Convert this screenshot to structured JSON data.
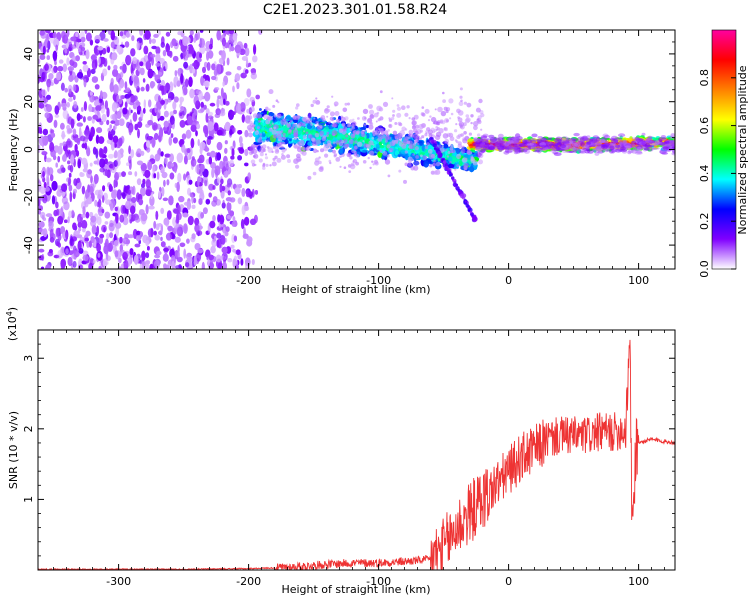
{
  "figure": {
    "title": "C2E1.2023.301.01.58.R24"
  },
  "chart_data": [
    {
      "type": "heatmap",
      "xlabel": "Height of straight line (km)",
      "ylabel": "Frequency (Hz)",
      "xlim": [
        -362,
        128
      ],
      "ylim": [
        -50,
        50
      ],
      "xticks": [
        -300,
        -200,
        -100,
        0,
        100
      ],
      "yticks": [
        -40,
        -20,
        0,
        20,
        40
      ],
      "grid": false,
      "colorbar": {
        "label": "Normalized spectral amplitude",
        "range": [
          0,
          1
        ],
        "ticks": [
          "0.0",
          "0.2",
          "0.4",
          "0.6",
          "0.8"
        ],
        "colors": [
          "#ffffff",
          "#8000ff",
          "#0000ff",
          "#00ffff",
          "#00ff00",
          "#ffff00",
          "#ff8000",
          "#ff0000",
          "#ff00a0"
        ]
      },
      "regions": [
        {
          "x_range": [
            -362,
            -190
          ],
          "freq_range": [
            -50,
            50
          ],
          "amplitude": 0.08
        },
        {
          "x_range": [
            -190,
            -30
          ],
          "freq_center": 8,
          "freq_end": 0,
          "amplitude": 0.3
        },
        {
          "x_range": [
            -30,
            128
          ],
          "freq_center": 2,
          "amplitude": 0.75
        }
      ]
    },
    {
      "type": "line",
      "xlabel": "Height of straight line (km)",
      "ylabel": "SNR (10 * v/v)",
      "y_multiplier": "(x10^4)",
      "xlim": [
        -362,
        128
      ],
      "ylim": [
        0,
        3.4
      ],
      "xticks": [
        -300,
        -200,
        -100,
        0,
        100
      ],
      "yticks": [
        1,
        2,
        3
      ],
      "grid": false,
      "series": [
        {
          "color": "#ee3333",
          "x": [
            -362,
            -300,
            -250,
            -200,
            -180,
            -160,
            -140,
            -120,
            -100,
            -80,
            -60,
            -50,
            -40,
            -30,
            -20,
            -10,
            0,
            10,
            20,
            30,
            40,
            50,
            60,
            70,
            80,
            90,
            93,
            95,
            98,
            100,
            110,
            128
          ],
          "y": [
            0.01,
            0.01,
            0.01,
            0.02,
            0.03,
            0.05,
            0.08,
            0.1,
            0.1,
            0.12,
            0.15,
            0.3,
            0.6,
            0.8,
            1.0,
            1.2,
            1.4,
            1.6,
            1.7,
            1.85,
            1.9,
            1.9,
            1.9,
            1.95,
            1.95,
            2.0,
            3.3,
            0.6,
            1.8,
            1.8,
            1.85,
            1.8
          ]
        }
      ]
    }
  ]
}
